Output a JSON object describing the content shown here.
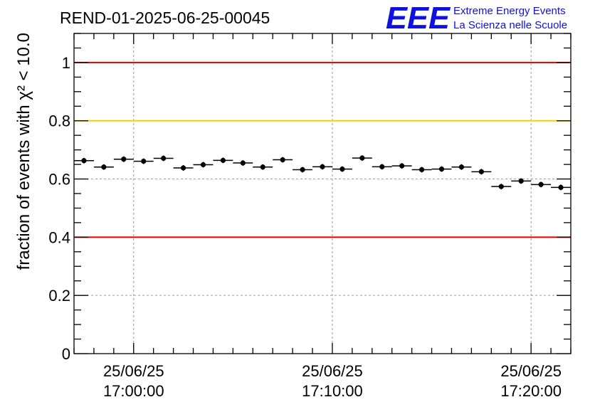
{
  "header": {
    "run_id": "REND-01-2025-06-25-00045",
    "logo_text": "EEE",
    "org_line1": "Extreme Energy Events",
    "org_line2": "La Scienza nelle Scuole"
  },
  "colors": {
    "logo": "#1010e0",
    "red_line": "#dd0000",
    "yellow_line": "#ffcc00",
    "grid": "#9a9a9a"
  },
  "chart_data": {
    "type": "scatter",
    "title": "REND-01-2025-06-25-00045",
    "ylabel": "fraction of events with χ² < 10.0",
    "ylim": [
      0,
      1.1
    ],
    "xlim_minutes": [
      -3,
      22
    ],
    "yticks": [
      {
        "value": 0,
        "label": "0"
      },
      {
        "value": 0.2,
        "label": "0.2"
      },
      {
        "value": 0.4,
        "label": "0.4"
      },
      {
        "value": 0.6,
        "label": "0.6"
      },
      {
        "value": 0.8,
        "label": "0.8"
      },
      {
        "value": 1,
        "label": "1"
      }
    ],
    "xticks": [
      {
        "minute": 0,
        "date": "25/06/25",
        "time": "17:00:00"
      },
      {
        "minute": 10,
        "date": "25/06/25",
        "time": "17:10:00"
      },
      {
        "minute": 20,
        "date": "25/06/25",
        "time": "17:20:00"
      }
    ],
    "grid": true,
    "reference_lines": [
      {
        "value": 1.0,
        "color": "red"
      },
      {
        "value": 0.8,
        "color": "yellow"
      },
      {
        "value": 0.4,
        "color": "red"
      }
    ],
    "points": [
      {
        "t": -2.5,
        "y": 0.663
      },
      {
        "t": -1.5,
        "y": 0.641
      },
      {
        "t": -0.5,
        "y": 0.668
      },
      {
        "t": 0.5,
        "y": 0.661
      },
      {
        "t": 1.5,
        "y": 0.671
      },
      {
        "t": 2.5,
        "y": 0.638
      },
      {
        "t": 3.5,
        "y": 0.649
      },
      {
        "t": 4.5,
        "y": 0.664
      },
      {
        "t": 5.5,
        "y": 0.655
      },
      {
        "t": 6.5,
        "y": 0.641
      },
      {
        "t": 7.5,
        "y": 0.666
      },
      {
        "t": 8.5,
        "y": 0.632
      },
      {
        "t": 9.5,
        "y": 0.642
      },
      {
        "t": 10.5,
        "y": 0.634
      },
      {
        "t": 11.5,
        "y": 0.672
      },
      {
        "t": 12.5,
        "y": 0.642
      },
      {
        "t": 13.5,
        "y": 0.645
      },
      {
        "t": 14.5,
        "y": 0.632
      },
      {
        "t": 15.5,
        "y": 0.634
      },
      {
        "t": 16.5,
        "y": 0.641
      },
      {
        "t": 17.5,
        "y": 0.625
      },
      {
        "t": 18.5,
        "y": 0.574
      },
      {
        "t": 19.5,
        "y": 0.593
      },
      {
        "t": 20.5,
        "y": 0.581
      },
      {
        "t": 21.5,
        "y": 0.571
      }
    ]
  }
}
